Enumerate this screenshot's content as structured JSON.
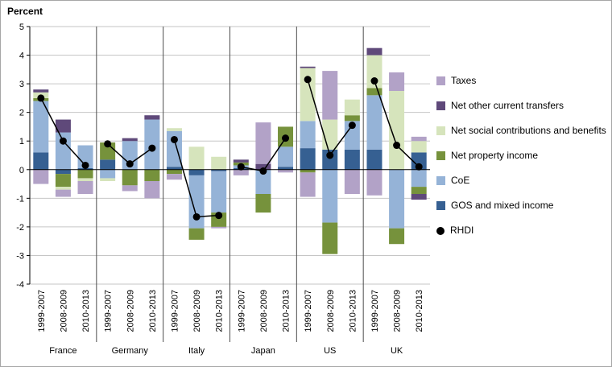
{
  "chart_data": {
    "type": "bar",
    "subtype": "stacked-bars-with-point-line-overlay",
    "title": "",
    "ylabel": "Percent",
    "xlabel": "",
    "ylim": [
      -4,
      5
    ],
    "yticks": [
      5,
      4,
      3,
      2,
      1,
      0,
      -1,
      -2,
      -3,
      -4
    ],
    "grid": true,
    "legend_position": "right",
    "groups": [
      "France",
      "Germany",
      "Italy",
      "Japan",
      "US",
      "UK"
    ],
    "periods": [
      "1999-2007",
      "2008-2009",
      "2010-2013"
    ],
    "series": [
      {
        "name": "Taxes",
        "color": "#b2a2c7",
        "values": [
          -0.5,
          -0.25,
          -0.45,
          0,
          -0.2,
          -0.6,
          -0.2,
          0,
          -0.05,
          -0.2,
          1.45,
          -0.1,
          -0.85,
          1.7,
          -0.85,
          -0.9,
          0.65,
          0.15
        ]
      },
      {
        "name": "Net other current transfers",
        "color": "#5f497a",
        "values": [
          0.1,
          0.45,
          0,
          0,
          0.1,
          0.15,
          0,
          0,
          0,
          0.1,
          0.2,
          0,
          0.05,
          0,
          0,
          0.25,
          0,
          -0.2
        ]
      },
      {
        "name": "Net social contributions and benefits",
        "color": "#d6e4bc",
        "values": [
          0.2,
          -0.1,
          -0.1,
          -0.1,
          0,
          0,
          0.1,
          0.8,
          0.45,
          0,
          0,
          0,
          1.85,
          1.05,
          0.55,
          1.15,
          2.75,
          0.4
        ]
      },
      {
        "name": "Net property income",
        "color": "#76923c",
        "values": [
          0.1,
          -0.45,
          -0.3,
          0.6,
          -0.55,
          -0.4,
          -0.15,
          -0.4,
          -0.5,
          0.1,
          -0.65,
          0.7,
          -0.1,
          -1.1,
          0.2,
          0.25,
          -0.55,
          -0.25
        ]
      },
      {
        "name": "CoE",
        "color": "#95b3d7",
        "values": [
          1.8,
          1.3,
          0.8,
          -0.3,
          1.0,
          1.75,
          1.25,
          -1.85,
          -1.45,
          0.1,
          -0.85,
          0.7,
          0.95,
          -1.85,
          1.0,
          1.9,
          -2.05,
          -0.6
        ]
      },
      {
        "name": "GOS and mixed income",
        "color": "#366092",
        "values": [
          0.6,
          -0.15,
          0.05,
          0.35,
          0,
          0,
          0.1,
          -0.2,
          -0.05,
          0.05,
          0,
          0.1,
          0.75,
          0.7,
          0.7,
          0.7,
          0,
          0.6
        ]
      }
    ],
    "line_series": {
      "name": "RHDI",
      "color": "#000000",
      "values": [
        2.5,
        1.0,
        0.15,
        0.9,
        0.2,
        0.75,
        1.05,
        -1.65,
        -1.6,
        0.1,
        -0.05,
        1.1,
        3.15,
        0.5,
        1.55,
        3.1,
        0.85,
        0.1
      ]
    }
  }
}
